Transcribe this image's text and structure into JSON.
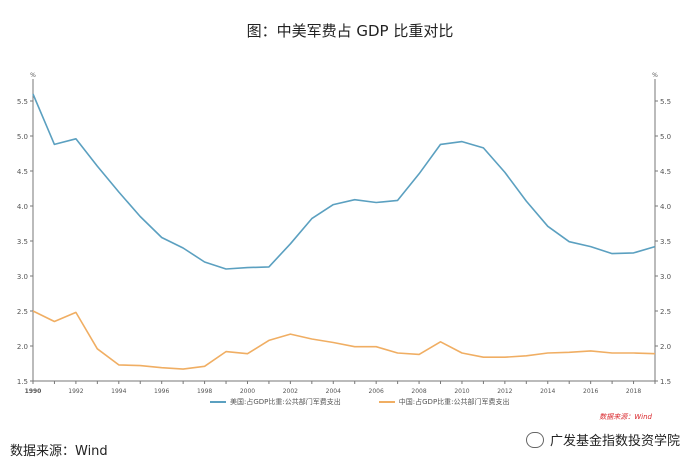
{
  "header": {
    "title": "图：中美军费占 GDP 比重对比"
  },
  "footer": {
    "source": "数据来源：Wind",
    "watermark": "广发基金指数投资学院",
    "chart_source": "数据来源：Wind"
  },
  "chart_data": {
    "type": "line",
    "title": "图：中美军费占 GDP 比重对比",
    "xlabel": "",
    "ylabel": "",
    "xlim": [
      1990,
      2019
    ],
    "ylim": [
      1.5,
      5.7
    ],
    "yticks": [
      1.5,
      2.0,
      2.5,
      3.0,
      3.5,
      4.0,
      4.5,
      5.0,
      5.5
    ],
    "xticks": [
      1990,
      1992,
      1994,
      1996,
      1998,
      2000,
      2002,
      2004,
      2006,
      2008,
      2010,
      2012,
      2014,
      2016,
      2018
    ],
    "y_unit_label": "%",
    "grid": false,
    "legend_position": "bottom",
    "x": [
      1990,
      1991,
      1992,
      1993,
      1994,
      1995,
      1996,
      1997,
      1998,
      1999,
      2000,
      2001,
      2002,
      2003,
      2004,
      2005,
      2006,
      2007,
      2008,
      2009,
      2010,
      2011,
      2012,
      2013,
      2014,
      2015,
      2016,
      2017,
      2018,
      2019
    ],
    "series": [
      {
        "name": "美国:占GDP比重:公共部门军费支出",
        "color": "#5ba0c0",
        "values": [
          5.6,
          4.88,
          4.96,
          4.57,
          4.2,
          3.85,
          3.55,
          3.4,
          3.2,
          3.1,
          3.12,
          3.13,
          3.46,
          3.82,
          4.02,
          4.09,
          4.05,
          4.08,
          4.46,
          4.88,
          4.92,
          4.83,
          4.48,
          4.07,
          3.71,
          3.49,
          3.42,
          3.32,
          3.33,
          3.42
        ]
      },
      {
        "name": "中国:占GDP比重:公共部门军费支出",
        "color": "#f0ae63",
        "values": [
          2.5,
          2.35,
          2.48,
          1.96,
          1.73,
          1.72,
          1.69,
          1.67,
          1.71,
          1.92,
          1.89,
          2.08,
          2.17,
          2.1,
          2.05,
          1.99,
          1.99,
          1.9,
          1.88,
          2.06,
          1.9,
          1.84,
          1.84,
          1.86,
          1.9,
          1.91,
          1.93,
          1.9,
          1.9,
          1.89
        ]
      }
    ]
  }
}
